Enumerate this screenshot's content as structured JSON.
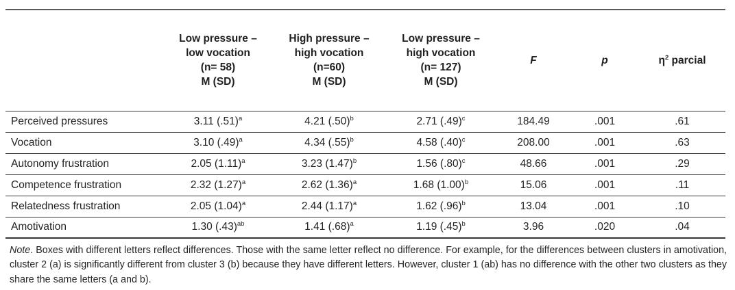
{
  "table": {
    "header": {
      "col0": "",
      "col1": {
        "l1": "Low pressure –",
        "l2": "low vocation",
        "l3": "(n= 58)",
        "l4": "M (SD)"
      },
      "col2": {
        "l1": "High pressure –",
        "l2": "high vocation",
        "l3": "(n=60)",
        "l4": "M (SD)"
      },
      "col3": {
        "l1": "Low pressure –",
        "l2": "high vocation",
        "l3": "(n= 127)",
        "l4": "M (SD)"
      },
      "col4": "F",
      "col5": "p",
      "col6": {
        "base": "η",
        "sup": "2",
        "rest": " parcial"
      }
    },
    "rows": [
      {
        "label": "Perceived pressures",
        "cells": [
          {
            "value": "3.11 (.51)",
            "sup": "a"
          },
          {
            "value": "4.21 (.50)",
            "sup": "b"
          },
          {
            "value": "2.71 (.49)",
            "sup": "c"
          }
        ],
        "F": "184.49",
        "p": ".001",
        "eta": ".61"
      },
      {
        "label": "Vocation",
        "cells": [
          {
            "value": "3.10 (.49)",
            "sup": "a"
          },
          {
            "value": "4.34 (.55)",
            "sup": "b"
          },
          {
            "value": "4.58 (.40)",
            "sup": "c"
          }
        ],
        "F": "208.00",
        "p": ".001",
        "eta": ".63"
      },
      {
        "label": "Autonomy frustration",
        "cells": [
          {
            "value": "2.05 (1.11)",
            "sup": "a"
          },
          {
            "value": "3.23 (1.47)",
            "sup": "b"
          },
          {
            "value": "1.56 (.80)",
            "sup": "c"
          }
        ],
        "F": "48.66",
        "p": ".001",
        "eta": ".29"
      },
      {
        "label": "Competence frustration",
        "cells": [
          {
            "value": "2.32 (1.27)",
            "sup": "a"
          },
          {
            "value": "2.62 (1.36)",
            "sup": "a"
          },
          {
            "value": "1.68 (1.00)",
            "sup": "b"
          }
        ],
        "F": "15.06",
        "p": ".001",
        "eta": ".11"
      },
      {
        "label": "Relatedness frustration",
        "cells": [
          {
            "value": "2.05 (1.04)",
            "sup": "a"
          },
          {
            "value": "2.44 (1.17)",
            "sup": "a"
          },
          {
            "value": "1.62 (.96)",
            "sup": "b"
          }
        ],
        "F": "13.04",
        "p": ".001",
        "eta": ".10"
      },
      {
        "label": "Amotivation",
        "cells": [
          {
            "value": "1.30 (.43)",
            "sup": "ab"
          },
          {
            "value": "1.41 (.68)",
            "sup": "a"
          },
          {
            "value": "1.19 (.45)",
            "sup": "b"
          }
        ],
        "F": "3.96",
        "p": ".020",
        "eta": ".04"
      }
    ]
  },
  "note": {
    "label": "Note",
    "text": ". Boxes with different letters reflect differences. Those with the same letter reflect no difference. For example, for the differences between clusters in amotivation, cluster 2 (a) is significantly different from cluster 3 (b) because they have different letters. However, cluster 1 (ab) has no difference with the other two clusters as they share the same letters (a and b)."
  }
}
